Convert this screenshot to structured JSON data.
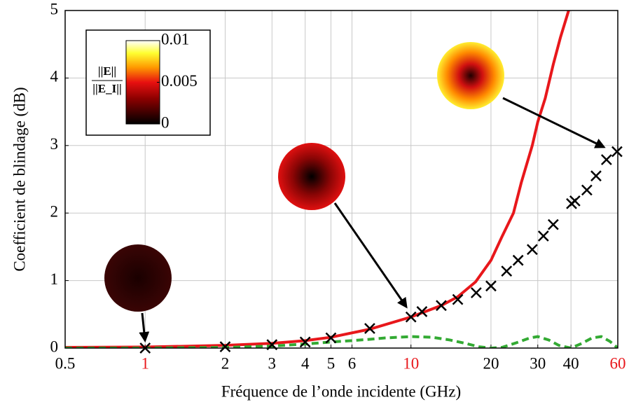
{
  "chart_data": {
    "type": "line",
    "x_label": "Fréquence de l’onde incidente (GHz)",
    "y_label": "Coefficient de blindage (dB)",
    "xscale": "log",
    "xlim": [
      0.5,
      60
    ],
    "ylim": [
      0,
      5
    ],
    "xticks": [
      0.5,
      1,
      2,
      3,
      4,
      5,
      6,
      10,
      20,
      30,
      40,
      60
    ],
    "xtick_colors": [
      "#000000",
      "#e8171b",
      "#000000",
      "#000000",
      "#000000",
      "#000000",
      "#000000",
      "#e8171b",
      "#000000",
      "#000000",
      "#000000",
      "#e8171b"
    ],
    "yticks": [
      0,
      1,
      2,
      3,
      4,
      5
    ],
    "grid": true,
    "series": [
      {
        "style": "line",
        "color": "#e8171b",
        "x": [
          0.5,
          1,
          2,
          3,
          4,
          5,
          7,
          10,
          13,
          15,
          17.5,
          20,
          22,
          24.3,
          26,
          28.6,
          30,
          32,
          34.3,
          36.5,
          39.2
        ],
        "values": [
          0.01,
          0.015,
          0.04,
          0.07,
          0.11,
          0.16,
          0.28,
          0.46,
          0.63,
          0.76,
          0.98,
          1.3,
          1.65,
          2.0,
          2.45,
          3.0,
          3.35,
          3.7,
          4.2,
          4.6,
          5.0
        ]
      },
      {
        "style": "dashed",
        "color": "#33aa33",
        "x": [
          0.5,
          1,
          2,
          3,
          4,
          5,
          6,
          7,
          8,
          10,
          12,
          14,
          16,
          18,
          20,
          22,
          25,
          28,
          30,
          33,
          36,
          40,
          44,
          48,
          52,
          56,
          60
        ],
        "values": [
          0,
          0,
          0.01,
          0.03,
          0.06,
          0.09,
          0.11,
          0.13,
          0.15,
          0.17,
          0.16,
          0.12,
          0.07,
          0.02,
          0,
          0.01,
          0.08,
          0.15,
          0.17,
          0.12,
          0.04,
          0,
          0.07,
          0.15,
          0.17,
          0.1,
          0
        ]
      },
      {
        "style": "markers",
        "color": "#000000",
        "x": [
          1,
          2,
          3,
          4,
          5,
          7,
          10,
          11,
          13,
          15,
          17.6,
          20,
          22.9,
          25.3,
          28.6,
          31.5,
          34.3,
          40.2,
          41.4,
          45.9,
          49.7,
          54.4,
          59.6
        ],
        "values": [
          0,
          0.02,
          0.05,
          0.09,
          0.15,
          0.29,
          0.46,
          0.54,
          0.63,
          0.72,
          0.82,
          0.92,
          1.14,
          1.3,
          1.46,
          1.66,
          1.83,
          2.14,
          2.18,
          2.34,
          2.55,
          2.79,
          2.91
        ]
      }
    ],
    "colorbar": {
      "label_numerator": "||E||",
      "label_denominator": "||E_I||",
      "lim": [
        0,
        0.01
      ],
      "ticks": [
        0,
        0.005,
        0.01
      ]
    }
  }
}
